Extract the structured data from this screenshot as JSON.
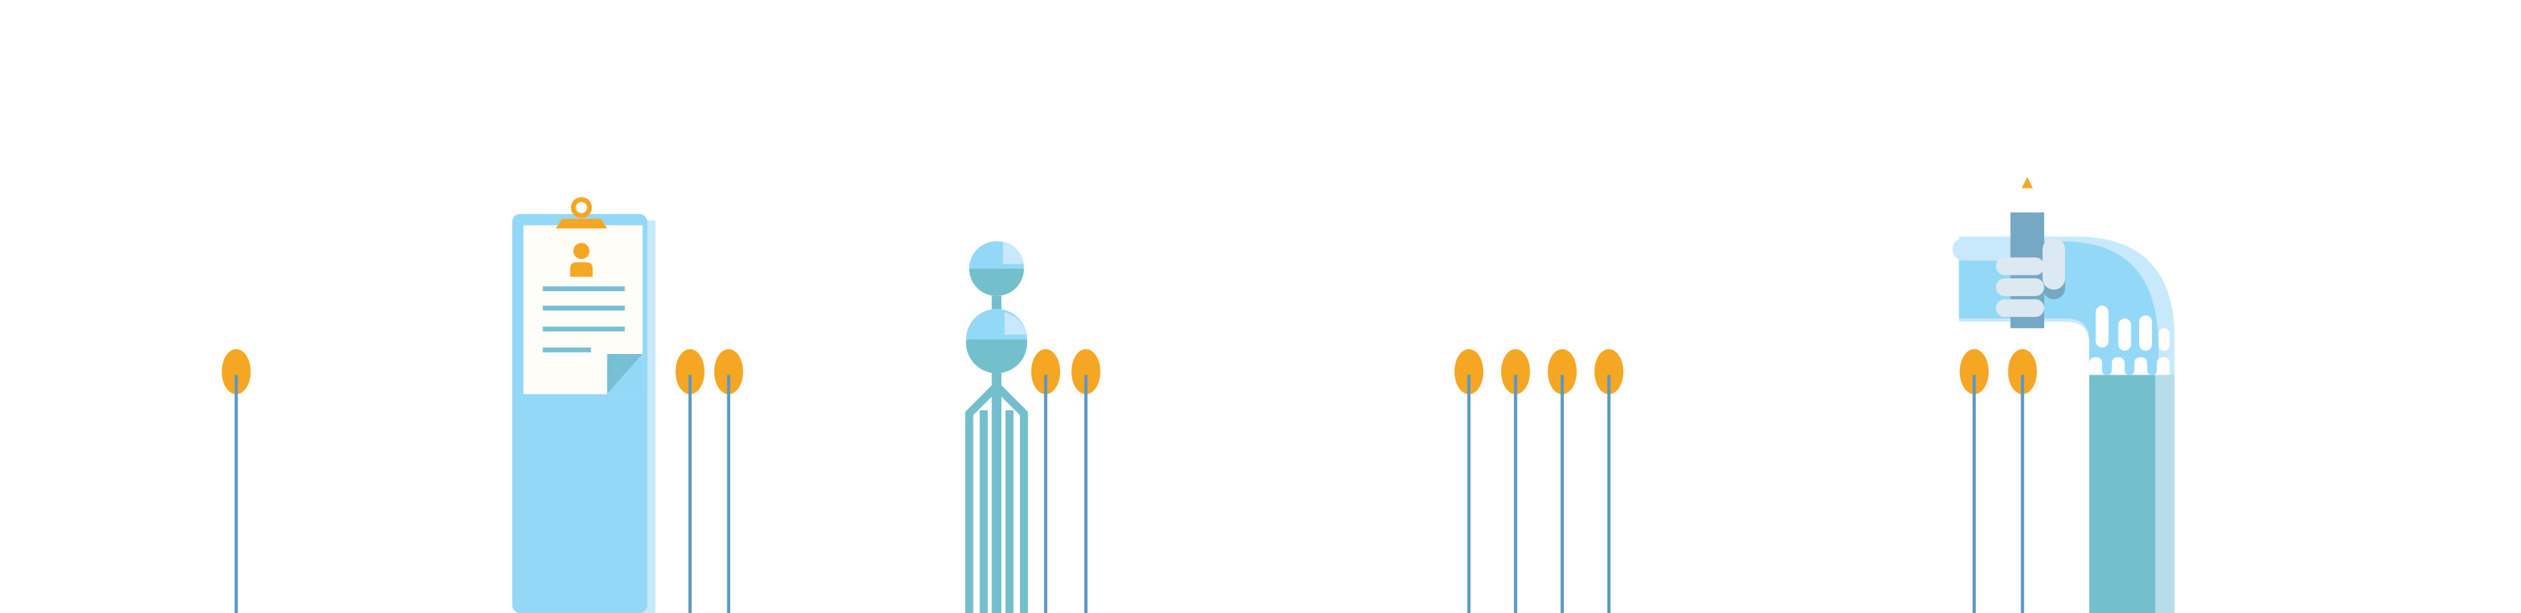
{
  "colors": {
    "background": "#ffffff",
    "stem": "#5b98c2",
    "bud": "#f5a623",
    "light_blue": "#93d8f6",
    "pale_blue": "#c7e9fb",
    "mid_blue": "#77bfd5",
    "teal": "#74bfcc",
    "steel": "#75a9c3",
    "paper": "#fffdf7",
    "tab_gray": "#dde9f1"
  },
  "icons": {
    "clipboard": "clipboard-profile-icon",
    "antenna": "antenna-tower-icon",
    "hand": "hand-pencil-icon",
    "stem_marker": "flower-stem-icon"
  }
}
